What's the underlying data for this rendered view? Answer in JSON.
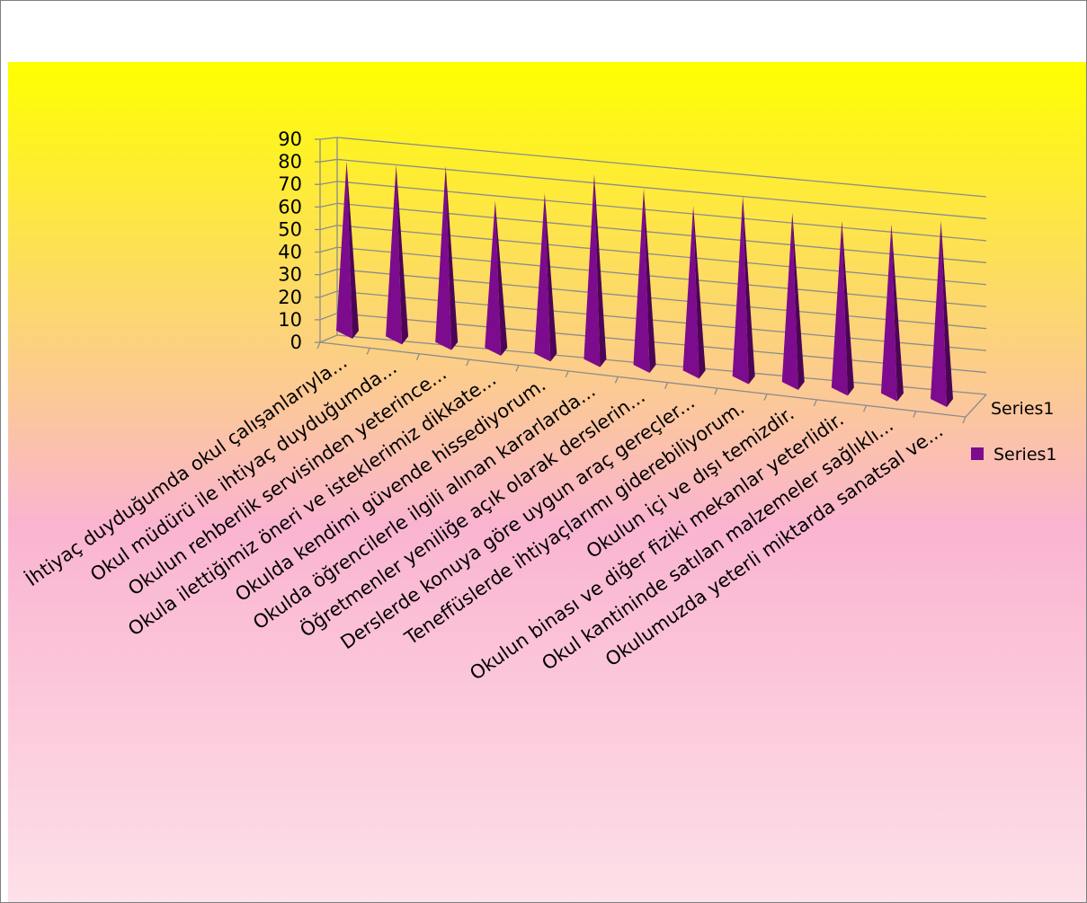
{
  "chart_data": {
    "type": "bar",
    "title": "",
    "xlabel": "",
    "ylabel": "",
    "ylim": [
      0,
      90
    ],
    "yticks": [
      0,
      10,
      20,
      30,
      40,
      50,
      60,
      70,
      80,
      90
    ],
    "grid": true,
    "legend_placement": "right",
    "categories": [
      "İhtiyaç duyduğumda okul çalışanlarıyla...",
      "Okul müdürü ile ihtiyaç duyduğumda...",
      "Okulun rehberlik servisinden yeterince...",
      "Okula ilettiğimiz öneri ve isteklerimiz dikkate...",
      "Okulda kendimi güvende hissediyorum.",
      "Okulda öğrencilerle ilgili alınan kararlarda...",
      "Öğretmenler yeniliğe açık olarak derslerin...",
      "Derslerde konuya göre uygun araç gereçler...",
      "Teneffüslerde ihtiyaçlarımı giderebiliyorum.",
      "Okulun içi ve dışı temizdir.",
      "Okulun binası ve diğer fiziki mekanlar yeterlidir.",
      "Okul kantininde satılan malzemeler sağlıklı...",
      "Okulumuzda yeterli miktarda sanatsal ve..."
    ],
    "series": [
      {
        "name": "Series1",
        "values": [
          77,
          78,
          80,
          67,
          73,
          84,
          80,
          75,
          82,
          77,
          76,
          77,
          81
        ]
      }
    ],
    "legend_entries": [
      "Series1",
      "Series1"
    ],
    "colors": {
      "bar": "#7d0b8e",
      "bar_dark": "#4c0456",
      "bg_top": "#ffff00",
      "bg_mid": "#fab4d0",
      "bg_bottom": "#fde0e8",
      "grid": "#8c8c8c"
    }
  }
}
